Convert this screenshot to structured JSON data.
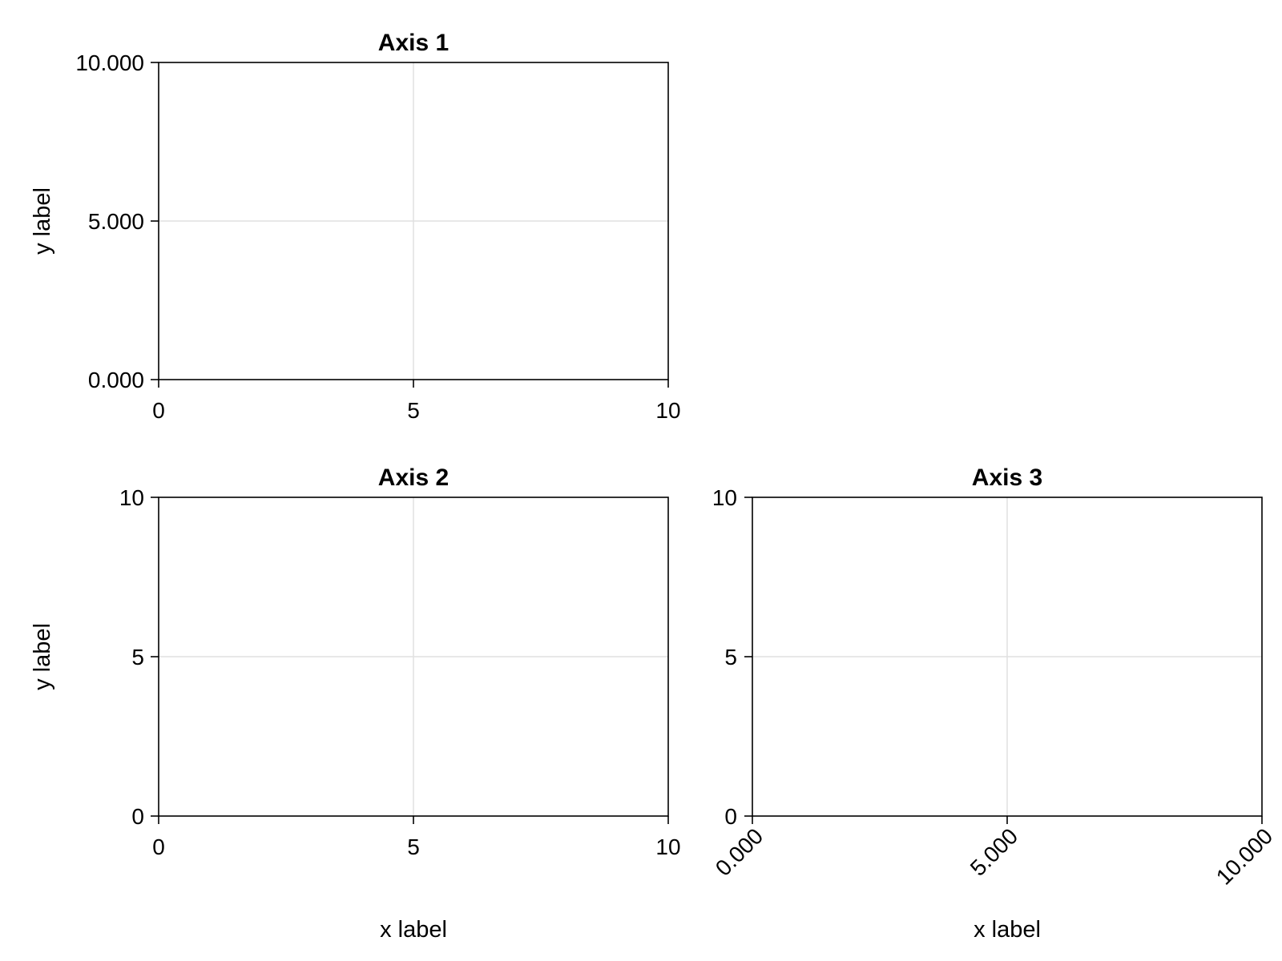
{
  "chart_data": [
    {
      "type": "scatter",
      "title": "Axis 1",
      "xlabel": "",
      "ylabel": "y label",
      "xlim": [
        0,
        10
      ],
      "ylim": [
        0,
        10
      ],
      "xticks": [
        "0",
        "5",
        "10"
      ],
      "yticks": [
        "0.000",
        "5.000",
        "10.000"
      ],
      "grid": true,
      "series": []
    },
    {
      "type": "scatter",
      "title": "Axis 2",
      "xlabel": "x label",
      "ylabel": "y label",
      "xlim": [
        0,
        10
      ],
      "ylim": [
        0,
        10
      ],
      "xticks": [
        "0",
        "5",
        "10"
      ],
      "yticks": [
        "0",
        "5",
        "10"
      ],
      "grid": true,
      "series": []
    },
    {
      "type": "scatter",
      "title": "Axis 3",
      "xlabel": "x label",
      "ylabel": "",
      "xlim": [
        0,
        10
      ],
      "ylim": [
        0,
        10
      ],
      "xticks": [
        "0.000",
        "5.000",
        "10.000"
      ],
      "yticks": [
        "0",
        "5",
        "10"
      ],
      "xtick_rotation": 45,
      "grid": true,
      "series": []
    }
  ]
}
